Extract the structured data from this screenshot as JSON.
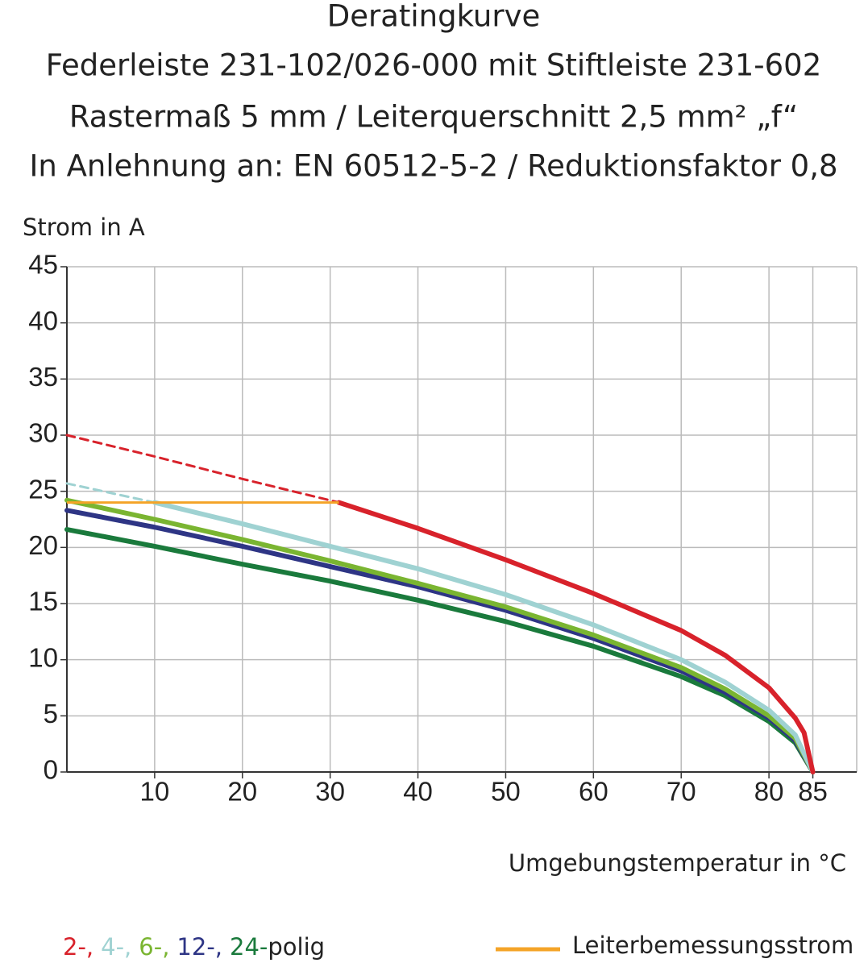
{
  "chart_data": {
    "type": "line",
    "title": "Deratingkurve",
    "subtitles": [
      "Federleiste 231-102/026-000 mit Stiftleiste 231-602",
      "Rastermaß 5 mm / Leiterquerschnitt 2,5 mm² „f“",
      "In Anlehnung an: EN 60512-5-2 / Reduktionsfaktor 0,8"
    ],
    "ylabel": "Strom in A",
    "xlabel": "Umgebungstemperatur in °C",
    "xlim": [
      0,
      90
    ],
    "ylim": [
      0,
      45
    ],
    "xticks": [
      10,
      20,
      30,
      40,
      50,
      60,
      70,
      80,
      85
    ],
    "yticks": [
      0,
      5,
      10,
      15,
      20,
      25,
      30,
      35,
      40,
      45
    ],
    "grid": true,
    "legend_suffix": "polig",
    "series": [
      {
        "name": "2-,",
        "color": "#d8222b",
        "dash_end": 31,
        "x": [
          0,
          10,
          20,
          31,
          40,
          50,
          60,
          70,
          75,
          80,
          83,
          84,
          85
        ],
        "values": [
          30,
          28.1,
          26.1,
          24,
          21.7,
          18.9,
          15.9,
          12.6,
          10.4,
          7.5,
          4.8,
          3.5,
          0
        ]
      },
      {
        "name": "4-,",
        "color": "#9fd2d2",
        "dash_end": 10,
        "x": [
          0,
          10,
          20,
          30,
          40,
          50,
          60,
          70,
          75,
          80,
          83,
          85
        ],
        "values": [
          25.7,
          24,
          22.1,
          20.1,
          18.1,
          15.8,
          13.1,
          10,
          8,
          5.5,
          3.3,
          0
        ]
      },
      {
        "name": "6-,",
        "color": "#7ab531",
        "x": [
          0,
          10,
          20,
          30,
          40,
          50,
          60,
          70,
          75,
          80,
          83,
          85
        ],
        "values": [
          24.2,
          22.5,
          20.7,
          18.8,
          16.8,
          14.7,
          12.2,
          9.3,
          7.4,
          5,
          3,
          0
        ]
      },
      {
        "name": "12-,",
        "color": "#2e3585",
        "x": [
          0,
          10,
          20,
          30,
          40,
          50,
          60,
          70,
          75,
          80,
          83,
          85
        ],
        "values": [
          23.3,
          21.8,
          20.1,
          18.3,
          16.5,
          14.4,
          11.9,
          9,
          7.1,
          4.8,
          2.8,
          0
        ]
      },
      {
        "name": "24-",
        "color": "#1a7a3c",
        "x": [
          0,
          10,
          20,
          30,
          40,
          50,
          60,
          70,
          75,
          80,
          83,
          85
        ],
        "values": [
          21.6,
          20.1,
          18.5,
          17,
          15.3,
          13.4,
          11.2,
          8.5,
          6.8,
          4.5,
          2.6,
          0
        ]
      }
    ],
    "reference": {
      "name": "Leiterbemessungsstrom",
      "color": "#f4a428",
      "value": 24,
      "x": [
        0,
        31
      ]
    }
  }
}
